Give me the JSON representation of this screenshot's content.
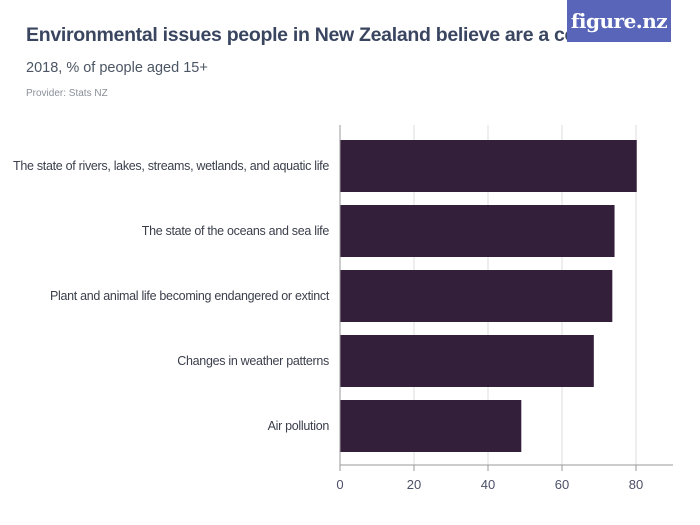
{
  "header": {
    "title": "Environmental issues people in New Zealand believe are a concern",
    "subtitle": "2018, % of people aged 15+",
    "provider": "Provider: Stats NZ",
    "logo_text": "figure.nz"
  },
  "colors": {
    "bar": "#341f3a",
    "grid": "#dcdcdc",
    "axis": "#999999",
    "logo_bg": "#5865b8"
  },
  "chart_data": {
    "type": "bar",
    "orientation": "horizontal",
    "categories": [
      "The state of rivers, lakes, streams, wetlands, and aquatic life",
      "The state of the oceans and sea life",
      "Plant and animal life becoming endangered or extinct",
      "Changes in weather patterns",
      "Air pollution"
    ],
    "values": [
      80.2,
      74.2,
      73.6,
      68.6,
      49.0
    ],
    "xlim": [
      0,
      90
    ],
    "xticks": [
      0,
      20,
      40,
      60,
      80
    ],
    "grid": true
  }
}
